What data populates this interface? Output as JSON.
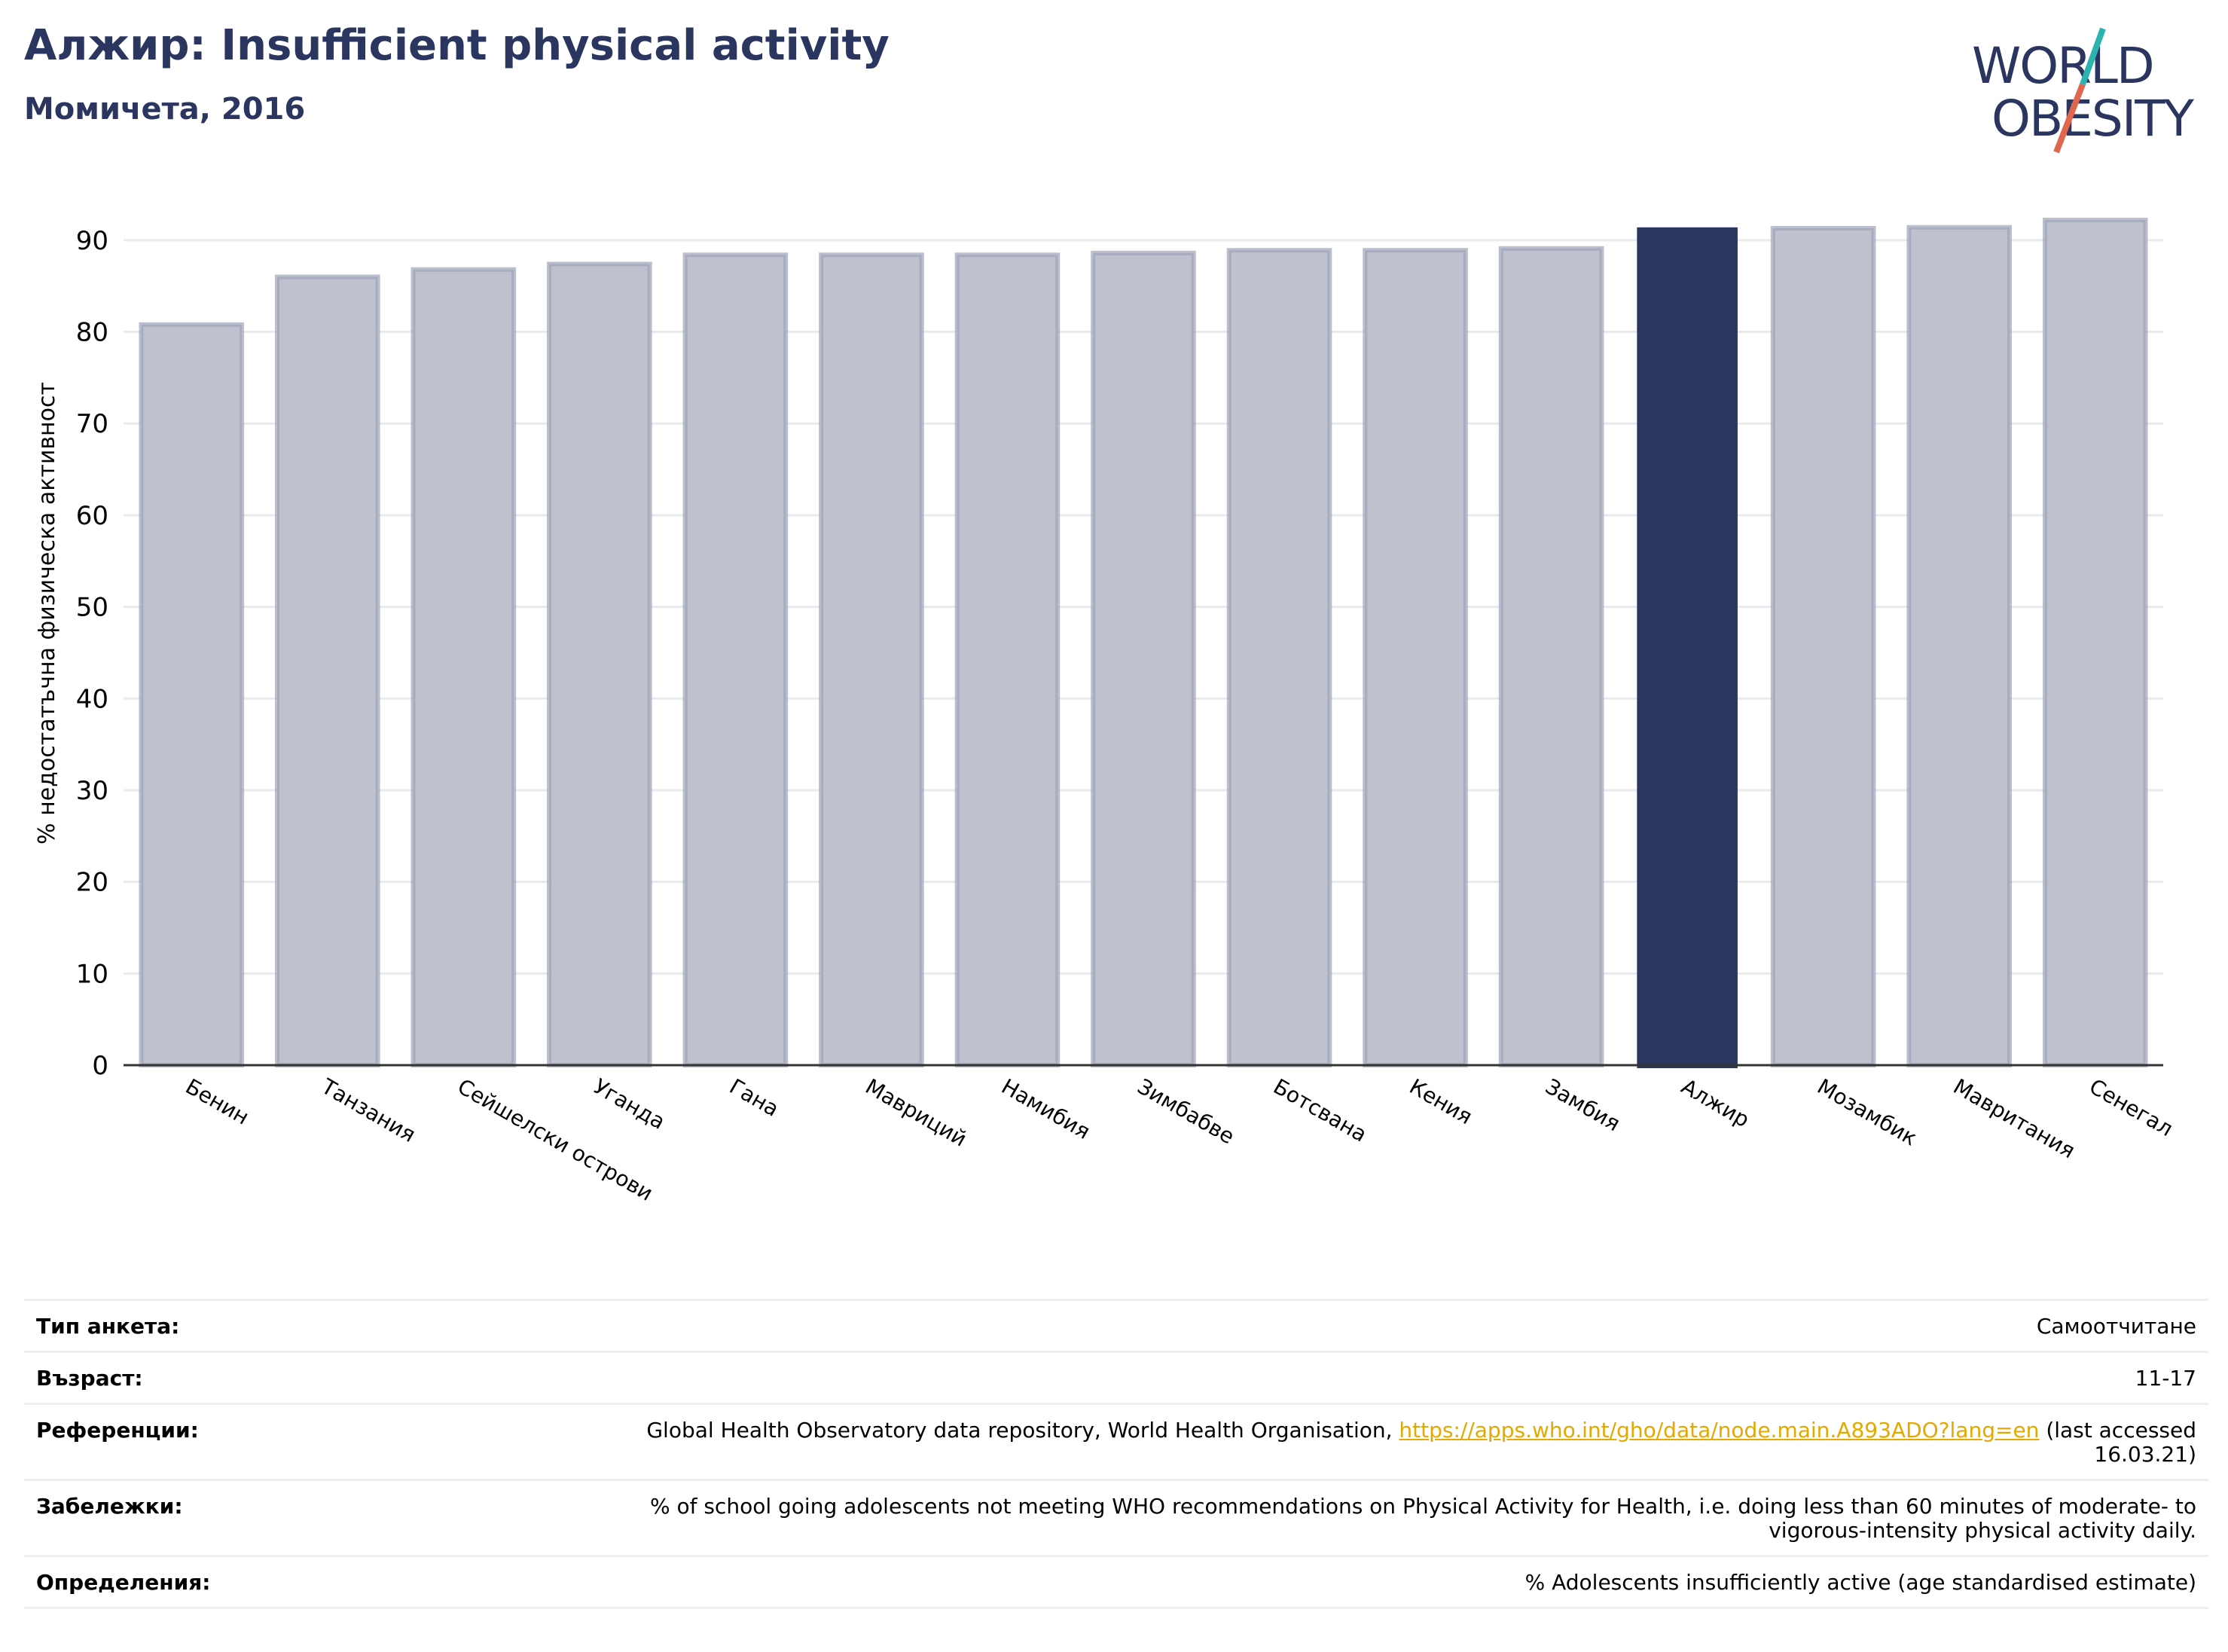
{
  "header": {
    "title": "Алжир: Insufficient physical activity",
    "subtitle": "Момичета, 2016"
  },
  "logo": {
    "line1": "WORLD",
    "line2": "OBESITY",
    "colors": {
      "text": "#2a3560",
      "slash_top": "#2bb3b0",
      "slash_bottom": "#e0664e"
    }
  },
  "chart_data": {
    "type": "bar",
    "categories": [
      "Бенин",
      "Танзания",
      "Сейшелски острови",
      "Уганда",
      "Гана",
      "Мавриций",
      "Намибия",
      "Зимбабве",
      "Ботсвана",
      "Кения",
      "Замбия",
      "Алжир",
      "Мозамбик",
      "Мавритания",
      "Сенегал"
    ],
    "values": [
      80.8,
      86.0,
      86.8,
      87.4,
      88.4,
      88.4,
      88.4,
      88.6,
      88.9,
      88.9,
      89.1,
      91.4,
      91.3,
      91.4,
      92.2
    ],
    "highlight": "Алжир",
    "ylabel": "% недостатъчна физическа активност",
    "xlabel": "",
    "ylim": [
      0,
      95
    ],
    "yticks": [
      0,
      10,
      20,
      30,
      40,
      50,
      60,
      70,
      80,
      90
    ],
    "grid": true,
    "colors": {
      "bar": "#bfc2ce",
      "bar_edge": "#9da2b8",
      "highlight": "#2a3560"
    }
  },
  "info": {
    "survey_type": {
      "label": "Тип анкета:",
      "value": "Самоотчитане"
    },
    "age": {
      "label": "Възраст:",
      "value": "11-17"
    },
    "references": {
      "label": "Референции:",
      "text_before": "Global Health Observatory data repository, World Health Organisation, ",
      "link": "https://apps.who.int/gho/data/node.main.A893ADO?lang=en",
      "text_after": " (last accessed 16.03.21)"
    },
    "notes": {
      "label": "Забележки:",
      "value": "% of school going adolescents not meeting WHO recommendations on Physical Activity for Health, i.e. doing less than 60 minutes of moderate- to vigorous-intensity physical activity daily."
    },
    "definitions": {
      "label": "Определения:",
      "value": "% Adolescents insufficiently active (age standardised estimate)"
    }
  }
}
